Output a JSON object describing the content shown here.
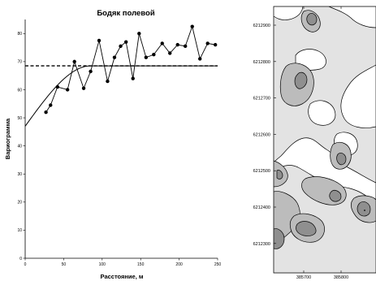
{
  "chart_data": [
    {
      "type": "line",
      "title": "Бодяк полевой",
      "xlabel": "Расстояние, м",
      "ylabel": "Вариограмма",
      "xlim": [
        0,
        250
      ],
      "ylim": [
        0,
        85
      ],
      "xticks": [
        "0",
        "50",
        "100",
        "150",
        "200",
        "250"
      ],
      "yticks": [
        "0",
        "10",
        "20",
        "30",
        "40",
        "50",
        "60",
        "70",
        "80"
      ],
      "sill": 68.5,
      "nugget": 47,
      "range": 85,
      "series": [
        {
          "style": "experimental",
          "x": [
            27,
            33,
            42,
            55,
            64,
            76,
            85,
            96,
            107,
            116,
            124,
            131,
            140,
            148,
            157,
            167,
            178,
            188,
            198,
            208,
            217,
            227,
            237,
            247
          ],
          "y": [
            52,
            54.5,
            61,
            60,
            70,
            60.5,
            66.5,
            77.5,
            63,
            71.5,
            75.5,
            77,
            64,
            80,
            71.5,
            72.5,
            76.5,
            73,
            76,
            75.5,
            82.5,
            71,
            76.5,
            76
          ]
        }
      ]
    },
    {
      "type": "heatmap",
      "yticks": [
        "6212900",
        "6212800",
        "6212700",
        "6212600",
        "6212500",
        "6212400",
        "6212300"
      ],
      "xticks": [
        "385700",
        "385800"
      ]
    }
  ]
}
